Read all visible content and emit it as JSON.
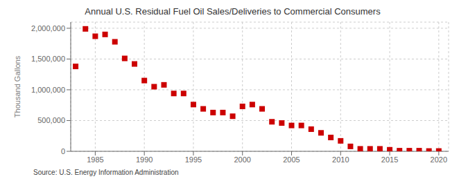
{
  "chart_data": {
    "type": "scatter",
    "title": "Annual U.S. Residual Fuel Oil Sales/Deliveries to Commercial Consumers",
    "ylabel": "Thousand Gallons",
    "annotations": [
      "Source: U.S. Energy Information Administration"
    ],
    "x": [
      1983,
      1984,
      1985,
      1986,
      1987,
      1988,
      1989,
      1990,
      1991,
      1992,
      1993,
      1994,
      1995,
      1996,
      1997,
      1998,
      1999,
      2000,
      2001,
      2002,
      2003,
      2004,
      2005,
      2006,
      2007,
      2008,
      2009,
      2010,
      2011,
      2012,
      2013,
      2014,
      2015,
      2016,
      2017,
      2018,
      2019,
      2020
    ],
    "values": [
      1380000,
      1990000,
      1870000,
      1900000,
      1780000,
      1510000,
      1420000,
      1150000,
      1050000,
      1080000,
      940000,
      940000,
      760000,
      690000,
      630000,
      630000,
      570000,
      730000,
      760000,
      690000,
      480000,
      460000,
      420000,
      420000,
      360000,
      300000,
      225000,
      170000,
      80000,
      40000,
      40000,
      40000,
      25000,
      10000,
      10000,
      10000,
      5000,
      5000
    ],
    "color": "#CC0000",
    "marker": "square",
    "grid": true,
    "xlim": [
      1982.5,
      2021
    ],
    "xticks": [
      1985,
      1990,
      1995,
      2000,
      2005,
      2010,
      2015,
      2020
    ],
    "ylim": [
      0,
      2100000
    ],
    "yticks": [
      0,
      {
        "value": 500000,
        "label": "500,000"
      },
      {
        "value": 1000000,
        "label": "1,000,000"
      },
      {
        "value": 1500000,
        "label": "1,500,000"
      },
      {
        "value": 2000000,
        "label": "2,000,000"
      }
    ]
  }
}
